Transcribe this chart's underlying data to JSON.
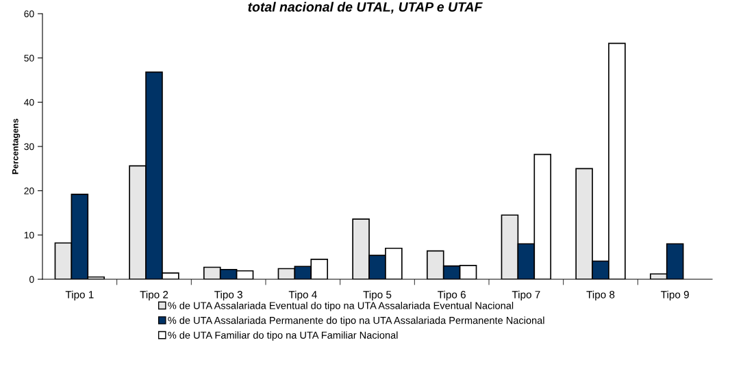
{
  "chart_data": {
    "type": "bar",
    "title": "total nacional de UTAL, UTAP e UTAF",
    "ylabel": "Percentagens",
    "categories": [
      "Tipo 1",
      "Tipo 2",
      "Tipo 3",
      "Tipo 4",
      "Tipo 5",
      "Tipo 6",
      "Tipo 7",
      "Tipo 8",
      "Tipo 9"
    ],
    "series": [
      {
        "name": "% de UTA Assalariada Eventual do tipo na UTA Assalariada Eventual Nacional",
        "color": "#e6e6e6",
        "values": [
          8.2,
          25.6,
          2.7,
          2.4,
          13.6,
          6.4,
          14.5,
          25.0,
          1.2
        ]
      },
      {
        "name": "% de UTA Assalariada Permanente do tipo na UTA Assalariada Permanente Nacional",
        "color": "#003366",
        "values": [
          19.2,
          46.8,
          2.2,
          2.9,
          5.4,
          3.0,
          8.0,
          4.1,
          8.0
        ]
      },
      {
        "name": "% de UTA Familiar do tipo na UTA Familiar Nacional",
        "color": "#ffffff",
        "values": [
          0.5,
          1.4,
          1.9,
          4.5,
          7.0,
          3.1,
          28.2,
          53.3,
          null
        ]
      }
    ],
    "ylim": [
      0,
      60
    ],
    "yticks": [
      0,
      10,
      20,
      30,
      40,
      50,
      60
    ],
    "grid": false,
    "legend": "bottom"
  }
}
